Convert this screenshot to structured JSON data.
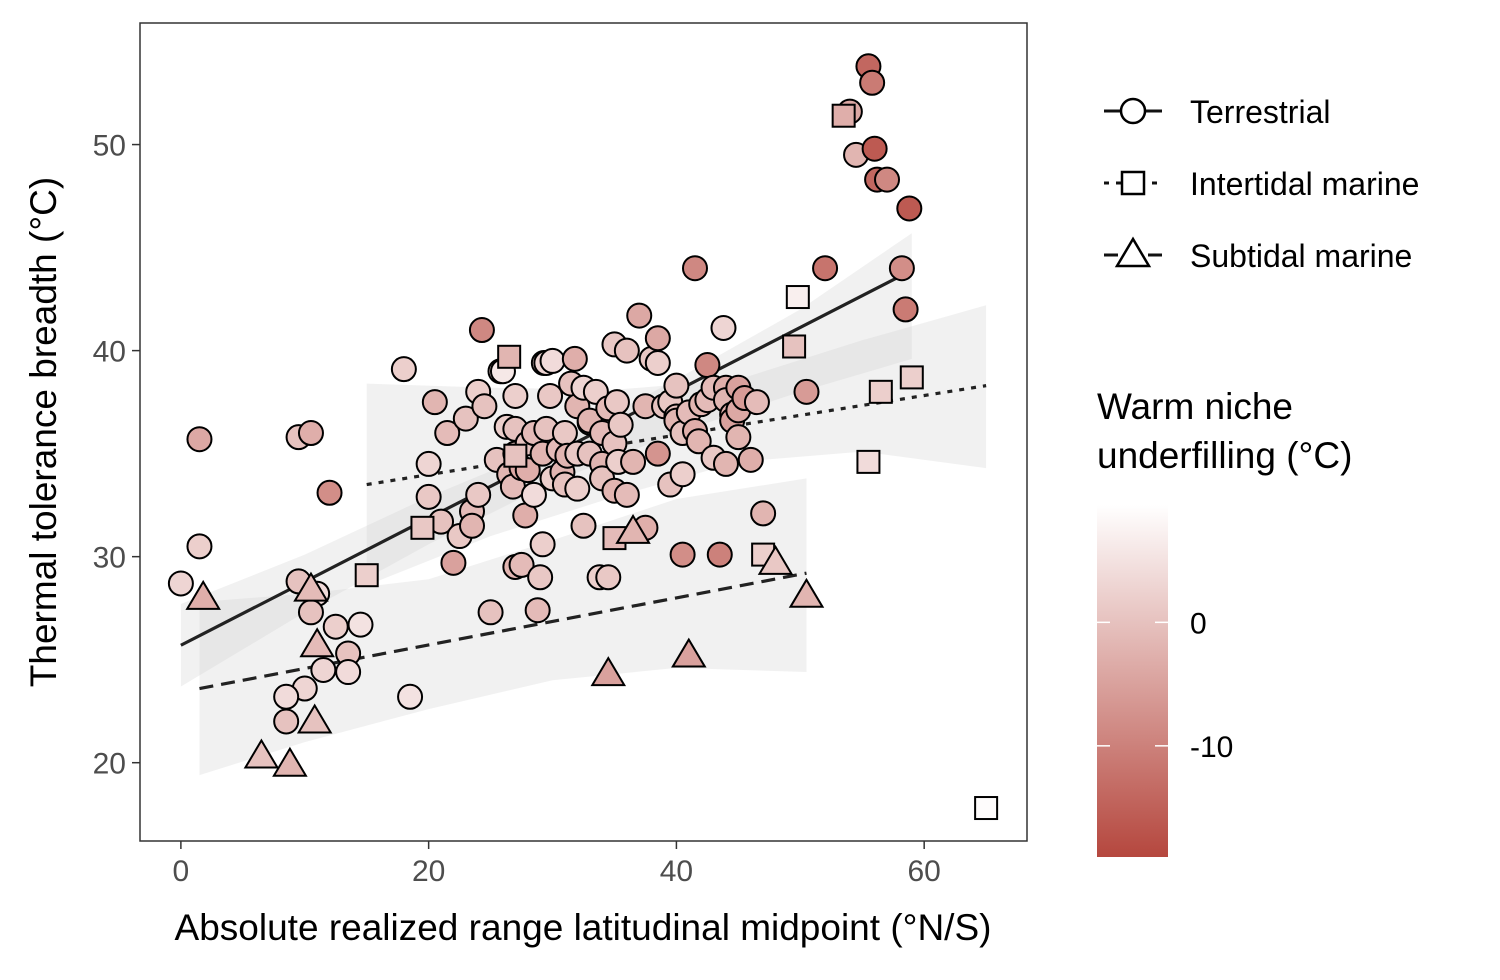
{
  "chart_data": {
    "type": "scatter",
    "xlabel": "Absolute realized range latitudinal midpoint (°N/S)",
    "ylabel": "Thermal tolerance breadth (°C)",
    "xlim": [
      -3.3,
      68.3
    ],
    "ylim": [
      16.2,
      55.9
    ],
    "x_ticks": [
      0,
      20,
      40,
      60
    ],
    "y_ticks": [
      20,
      30,
      40,
      50
    ],
    "grid": false,
    "legend_position": "right",
    "shape_legend": [
      {
        "name": "Terrestrial",
        "shape": "circle",
        "linetype": "solid"
      },
      {
        "name": "Intertidal marine",
        "shape": "square",
        "linetype": "dotted"
      },
      {
        "name": "Subtidal marine",
        "shape": "triangle",
        "linetype": "dashed"
      }
    ],
    "color_legend": {
      "title_lines": [
        "Warm niche",
        "underfilling (°C)"
      ],
      "range": [
        -19,
        9.5
      ],
      "ticks": [
        0,
        -10
      ],
      "high_color": "#ffffff",
      "low_color": "#b5473e"
    },
    "fit_lines": [
      {
        "group": "Terrestrial",
        "x": [
          0,
          59
        ],
        "y": [
          25.7,
          43.9
        ],
        "band": [
          [
            0,
            23.7,
            27.7
          ],
          [
            10,
            27.3,
            30.1
          ],
          [
            20,
            30.6,
            32.9
          ],
          [
            30,
            33.6,
            35.4
          ],
          [
            40,
            36.0,
            38.6
          ],
          [
            50,
            38.0,
            42.0
          ],
          [
            59,
            39.6,
            45.7
          ]
        ]
      },
      {
        "group": "Intertidal marine",
        "x": [
          15,
          65
        ],
        "y": [
          33.5,
          38.3
        ],
        "band": [
          [
            15,
            28.6,
            38.4
          ],
          [
            25,
            31.0,
            38.2
          ],
          [
            35,
            32.9,
            38.1
          ],
          [
            45,
            34.6,
            38.6
          ],
          [
            55,
            35.1,
            40.5
          ],
          [
            65,
            34.3,
            42.2
          ]
        ]
      },
      {
        "group": "Subtidal marine",
        "x": [
          1.5,
          50.5
        ],
        "y": [
          23.6,
          29.2
        ],
        "band": [
          [
            1.5,
            19.4,
            27.8
          ],
          [
            10,
            21.0,
            28.2
          ],
          [
            20,
            22.6,
            28.9
          ],
          [
            30,
            24.0,
            30.8
          ],
          [
            40,
            24.6,
            32.8
          ],
          [
            50.5,
            24.4,
            33.8
          ]
        ]
      }
    ],
    "series": [
      {
        "name": "Terrestrial",
        "shape": "circle",
        "points": [
          [
            0,
            28.7,
            3
          ],
          [
            1.5,
            35.7,
            -4
          ],
          [
            1.5,
            30.5,
            2
          ],
          [
            9.5,
            28.8,
            0
          ],
          [
            9.5,
            35.8,
            0
          ],
          [
            10.5,
            36.0,
            -3
          ],
          [
            11,
            28.2,
            4
          ],
          [
            10.5,
            27.3,
            0
          ],
          [
            10,
            23.6,
            3
          ],
          [
            8.5,
            23.2,
            4
          ],
          [
            8.5,
            22.0,
            0
          ],
          [
            11.5,
            24.5,
            3
          ],
          [
            12.5,
            26.6,
            2
          ],
          [
            13.5,
            25.3,
            0
          ],
          [
            13.5,
            24.4,
            4
          ],
          [
            14.5,
            26.7,
            5
          ],
          [
            12,
            33.1,
            -8
          ],
          [
            18,
            39.1,
            2
          ],
          [
            18.5,
            23.2,
            5
          ],
          [
            20,
            34.5,
            3
          ],
          [
            20,
            32.9,
            1
          ],
          [
            20.5,
            37.5,
            -2
          ],
          [
            21,
            31.7,
            0
          ],
          [
            21.5,
            36.0,
            -1
          ],
          [
            22,
            29.7,
            -5
          ],
          [
            22.5,
            31.0,
            1
          ],
          [
            23,
            36.7,
            0
          ],
          [
            23.5,
            32.2,
            -1
          ],
          [
            23.5,
            31.5,
            -2
          ],
          [
            24,
            38.0,
            2
          ],
          [
            24,
            33.0,
            1
          ],
          [
            24.5,
            37.3,
            0
          ],
          [
            24.3,
            41.0,
            -9
          ],
          [
            25,
            27.3,
            0
          ],
          [
            25.5,
            34.7,
            0
          ],
          [
            25.8,
            39.0,
            3
          ],
          [
            26,
            39.0,
            6
          ],
          [
            26.3,
            36.3,
            2
          ],
          [
            26.5,
            34.0,
            -2
          ],
          [
            26.8,
            33.4,
            -1
          ],
          [
            27,
            37.8,
            2
          ],
          [
            27,
            36.2,
            0
          ],
          [
            27,
            29.5,
            -2
          ],
          [
            27,
            35.0,
            0
          ],
          [
            27.5,
            29.6,
            -1
          ],
          [
            27.5,
            34.3,
            -4
          ],
          [
            27.8,
            32.0,
            -3
          ],
          [
            28,
            35.5,
            0
          ],
          [
            28,
            34.2,
            -3
          ],
          [
            28.5,
            33.0,
            4
          ],
          [
            28.5,
            36.0,
            -1
          ],
          [
            28.8,
            27.4,
            -1
          ],
          [
            29,
            29.0,
            1
          ],
          [
            29.2,
            30.6,
            2
          ],
          [
            29.2,
            35.0,
            -2
          ],
          [
            29.3,
            39.4,
            2
          ],
          [
            29.5,
            39.4,
            3
          ],
          [
            29.5,
            36.2,
            0
          ],
          [
            29.8,
            37.8,
            1
          ],
          [
            30,
            39.5,
            4
          ],
          [
            30,
            33.8,
            2
          ],
          [
            30.5,
            35.2,
            -1
          ],
          [
            30.8,
            34.1,
            -2
          ],
          [
            31,
            36.0,
            1
          ],
          [
            31,
            33.5,
            0
          ],
          [
            31.2,
            34.9,
            -2
          ],
          [
            31.5,
            38.4,
            0
          ],
          [
            31.8,
            39.6,
            -3
          ],
          [
            32,
            37.3,
            -2
          ],
          [
            32,
            35.0,
            1
          ],
          [
            32,
            33.3,
            2
          ],
          [
            32.5,
            38.2,
            3
          ],
          [
            32.5,
            31.5,
            0
          ],
          [
            33,
            36.5,
            -4
          ],
          [
            33,
            35.0,
            0
          ],
          [
            33,
            36.6,
            -2
          ],
          [
            33.5,
            38.0,
            2
          ],
          [
            33.8,
            29.0,
            2
          ],
          [
            34,
            34.5,
            -2
          ],
          [
            34,
            36.0,
            -1
          ],
          [
            34,
            33.8,
            0
          ],
          [
            34.5,
            37.2,
            -1
          ],
          [
            34.5,
            29.0,
            1
          ],
          [
            35,
            40.3,
            1
          ],
          [
            35,
            35.5,
            0
          ],
          [
            35,
            33.2,
            -2
          ],
          [
            35.2,
            37.5,
            1
          ],
          [
            35.3,
            34.6,
            2
          ],
          [
            35.5,
            36.4,
            1
          ],
          [
            36,
            40.0,
            0
          ],
          [
            36,
            33.0,
            -1
          ],
          [
            36.5,
            34.6,
            -2
          ],
          [
            37,
            41.7,
            -4
          ],
          [
            37.5,
            37.3,
            -2
          ],
          [
            37.5,
            31.4,
            -3
          ],
          [
            38,
            39.6,
            1
          ],
          [
            38.5,
            40.6,
            -4
          ],
          [
            38.5,
            39.4,
            2
          ],
          [
            38.5,
            35.0,
            -7
          ],
          [
            39,
            37.3,
            0
          ],
          [
            39.5,
            37.5,
            1
          ],
          [
            39.5,
            33.5,
            0
          ],
          [
            40,
            38.3,
            0
          ],
          [
            40,
            36.8,
            0
          ],
          [
            40,
            36.6,
            -2
          ],
          [
            40.5,
            34.0,
            2
          ],
          [
            40.5,
            36.0,
            0
          ],
          [
            40.5,
            30.1,
            -8
          ],
          [
            41,
            37.0,
            -1
          ],
          [
            41.5,
            36.1,
            -3
          ],
          [
            41.5,
            44.0,
            -9
          ],
          [
            41.8,
            35.6,
            -2
          ],
          [
            42,
            37.4,
            -2
          ],
          [
            42.5,
            37.6,
            -1
          ],
          [
            42.5,
            39.3,
            -9
          ],
          [
            43,
            38.2,
            -1
          ],
          [
            43,
            34.8,
            1
          ],
          [
            43.5,
            30.1,
            -10
          ],
          [
            43.8,
            41.1,
            3
          ],
          [
            44,
            38.2,
            -3
          ],
          [
            44,
            34.5,
            -2
          ],
          [
            44,
            37.6,
            -2
          ],
          [
            44.5,
            36.9,
            -3
          ],
          [
            44.5,
            36.6,
            -5
          ],
          [
            45,
            38.2,
            -5
          ],
          [
            45,
            37.1,
            -4
          ],
          [
            45,
            35.8,
            -2
          ],
          [
            45.5,
            37.7,
            -6
          ],
          [
            46,
            34.7,
            -3
          ],
          [
            46.5,
            37.5,
            -1
          ],
          [
            47,
            32.1,
            -2
          ],
          [
            50.5,
            38.0,
            -6
          ],
          [
            52,
            44.0,
            -12
          ],
          [
            54,
            51.6,
            -4
          ],
          [
            54.5,
            49.5,
            -2
          ],
          [
            55.5,
            53.8,
            -14
          ],
          [
            55.8,
            53.0,
            -11
          ],
          [
            56,
            49.8,
            -16
          ],
          [
            56.2,
            48.3,
            -14
          ],
          [
            57,
            48.3,
            -9
          ],
          [
            58.2,
            44.0,
            -8
          ],
          [
            58.5,
            42.0,
            -11
          ],
          [
            58.8,
            46.9,
            -16
          ]
        ]
      },
      {
        "name": "Intertidal marine",
        "shape": "square",
        "points": [
          [
            19.5,
            31.4,
            1
          ],
          [
            15,
            29.1,
            2
          ],
          [
            26.5,
            39.7,
            -2
          ],
          [
            27,
            34.9,
            0
          ],
          [
            35,
            30.9,
            -1
          ],
          [
            47,
            30.1,
            2
          ],
          [
            49.5,
            40.2,
            0
          ],
          [
            49.8,
            42.6,
            7
          ],
          [
            53.5,
            51.4,
            -3
          ],
          [
            55.5,
            34.6,
            4
          ],
          [
            56.5,
            38.0,
            2
          ],
          [
            59,
            38.7,
            2
          ],
          [
            65,
            17.8,
            9
          ]
        ]
      },
      {
        "name": "Subtidal marine",
        "shape": "triangle",
        "points": [
          [
            1.8,
            28.0,
            -3
          ],
          [
            6.5,
            20.3,
            0
          ],
          [
            8.8,
            19.9,
            -2
          ],
          [
            10.5,
            28.4,
            -1
          ],
          [
            11,
            25.7,
            -1
          ],
          [
            10.8,
            22.0,
            0
          ],
          [
            34.5,
            24.3,
            -5
          ],
          [
            36.5,
            31.2,
            -2
          ],
          [
            41,
            25.2,
            -5
          ],
          [
            48,
            29.7,
            1
          ],
          [
            50.5,
            28.1,
            -2
          ]
        ]
      }
    ]
  }
}
